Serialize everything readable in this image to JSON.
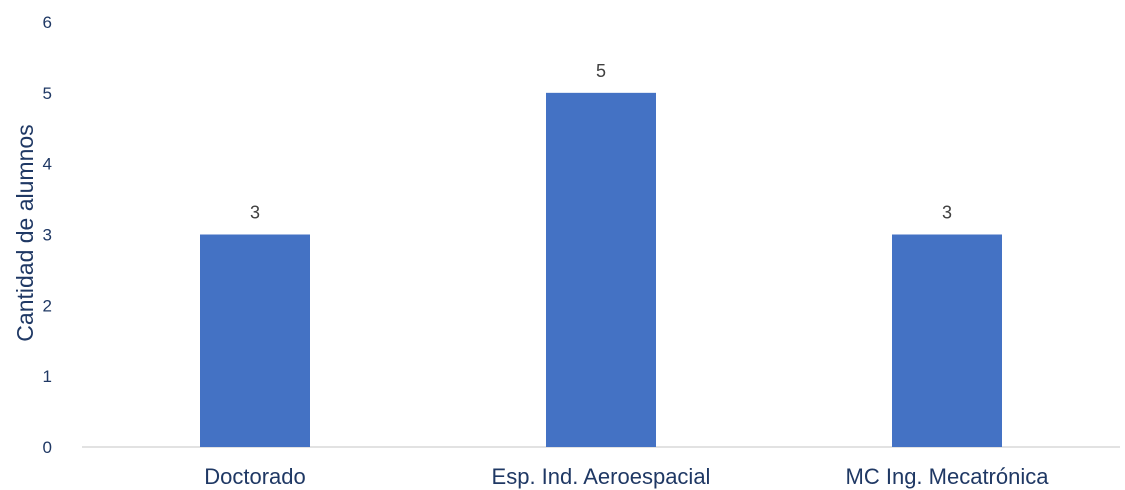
{
  "chart_data": {
    "type": "bar",
    "title": "",
    "xlabel": "",
    "ylabel": "Cantidad de alumnos",
    "categories": [
      "Doctorado",
      "Esp. Ind. Aeroespacial",
      "MC Ing. Mecatrónica"
    ],
    "values": [
      3,
      5,
      3
    ],
    "data_labels": [
      "3",
      "5",
      "3"
    ],
    "ylim": [
      0,
      6
    ],
    "yticks": [
      "0",
      "1",
      "2",
      "3",
      "4",
      "5",
      "6"
    ],
    "grid": false,
    "legend": "none",
    "colors": {
      "bar": "#4472C4",
      "axis_text": "#1f3864",
      "data_label": "#404040",
      "baseline": "#d9d9d9"
    }
  }
}
